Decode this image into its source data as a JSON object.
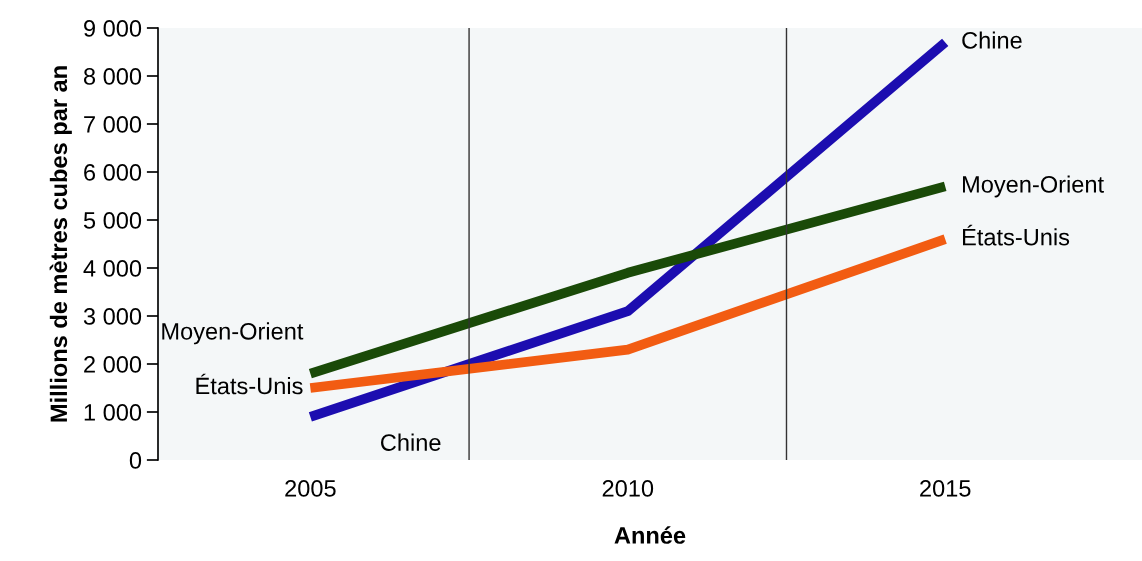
{
  "chart_data": {
    "type": "line",
    "xlabel": "Année",
    "ylabel": "Millions de mètres cubes par an",
    "categories": [
      "2005",
      "2010",
      "2015"
    ],
    "series": [
      {
        "name": "Chine",
        "color": "#1c0db0",
        "values": [
          900,
          3100,
          8700
        ]
      },
      {
        "name": "Moyen-Orient",
        "color": "#1a4a08",
        "values": [
          1800,
          3900,
          5700
        ]
      },
      {
        "name": "États-Unis",
        "color": "#f25c12",
        "values": [
          1500,
          2300,
          4600
        ]
      }
    ],
    "ylim": [
      0,
      9000
    ],
    "yticks": [
      0,
      {
        "value": 1000,
        "label": "1 000"
      },
      {
        "value": 2000,
        "label": "2 000"
      },
      {
        "value": 3000,
        "label": "3 000"
      },
      {
        "value": 4000,
        "label": "4 000"
      },
      {
        "value": 5000,
        "label": "5 000"
      },
      {
        "value": 6000,
        "label": "6 000"
      },
      {
        "value": 7000,
        "label": "7 000"
      },
      {
        "value": 8000,
        "label": "8 000"
      },
      {
        "value": 9000,
        "label": "9 000"
      }
    ],
    "grid": false,
    "legend": false,
    "marker": "none",
    "line_style": "solid"
  }
}
